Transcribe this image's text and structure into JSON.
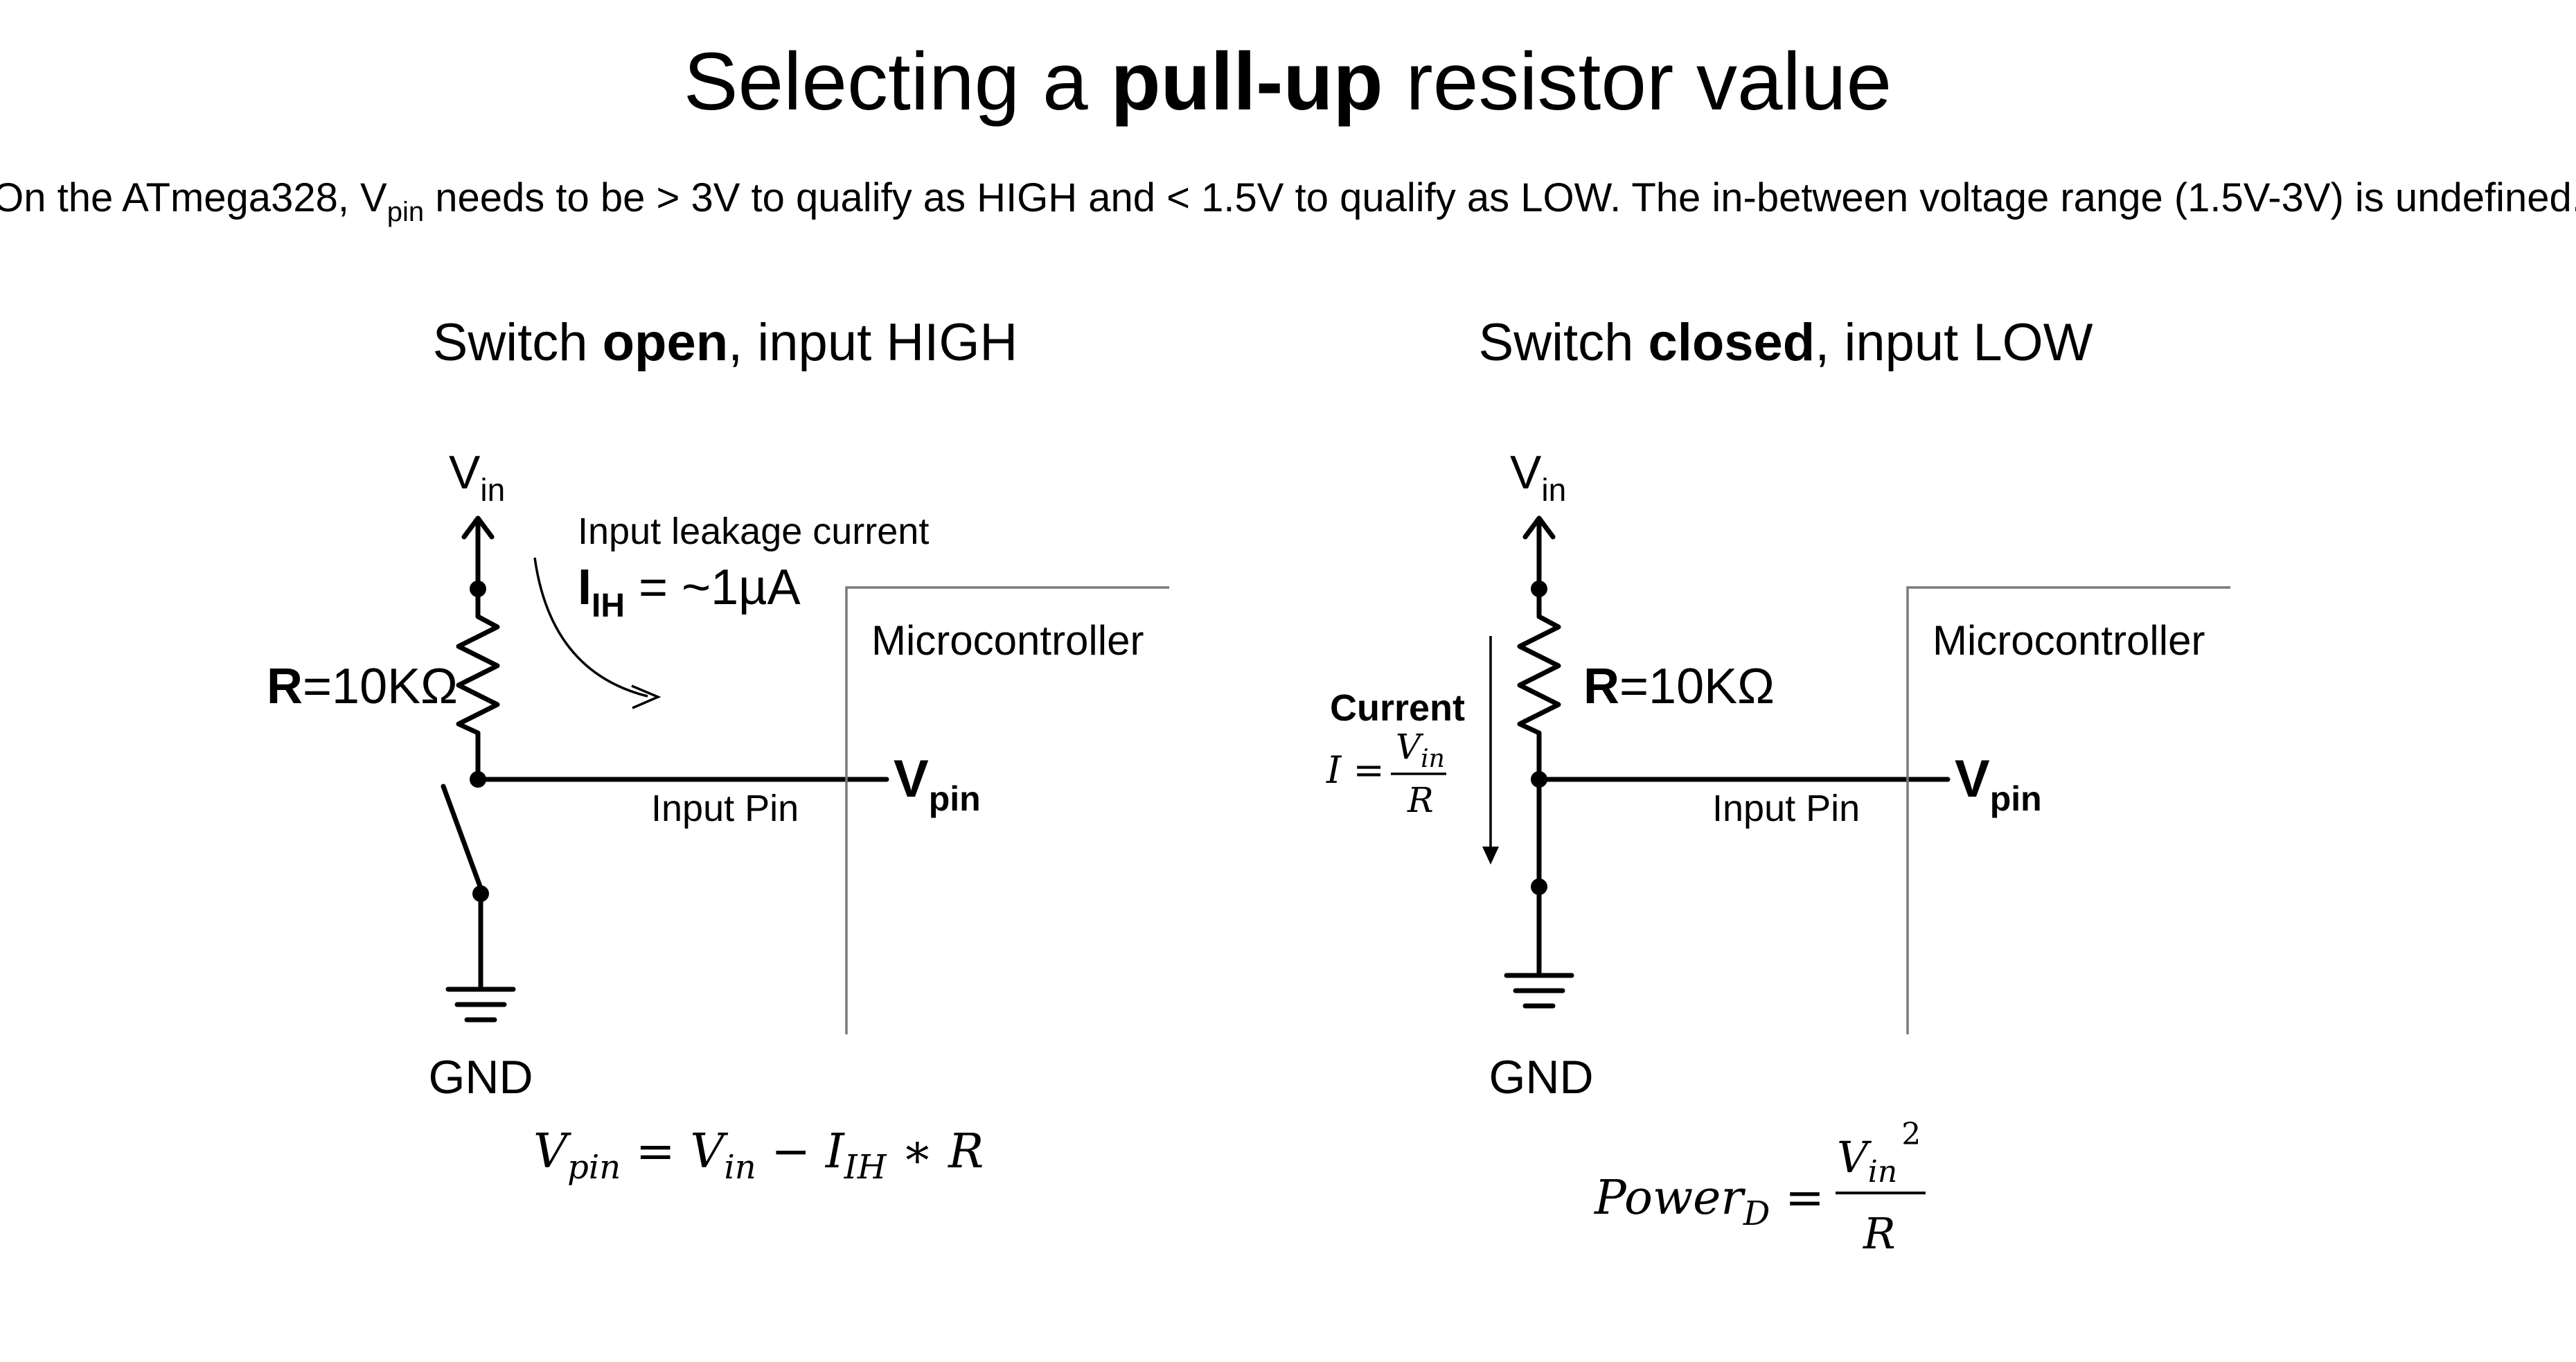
{
  "title": {
    "prefix": "Selecting a ",
    "bold": "pull-up",
    "suffix": " resistor value"
  },
  "subtitle": {
    "part1": "On the ATmega328, V",
    "sub": "pin",
    "part2": " needs to be > 3V to qualify as HIGH and < 1.5V to qualify as LOW. The in-between voltage range (1.5V-3V) is undefined."
  },
  "left": {
    "heading_prefix": "Switch ",
    "heading_bold": "open",
    "heading_suffix": ", input HIGH",
    "vin": "V",
    "vin_sub": "in",
    "resistor_bold": "R",
    "resistor_value": "=10KΩ",
    "leakage_label": "Input leakage current",
    "leakage_I": "I",
    "leakage_sub": "IH",
    "leakage_value": " = ~1µA",
    "mcu_label": "Microcontroller",
    "input_pin": "Input Pin",
    "vpin": "V",
    "vpin_sub": "pin",
    "gnd": "GND",
    "eq_vpin": "V",
    "eq_vpin_sub": "pin",
    "eq_eq": " = ",
    "eq_vin": "V",
    "eq_vin_sub": "in",
    "eq_minus": " −  ",
    "eq_i": "I",
    "eq_i_sub": "IH",
    "eq_rest": " ∗ R"
  },
  "right": {
    "heading_prefix": "Switch ",
    "heading_bold": "closed",
    "heading_suffix": ", input LOW",
    "vin": "V",
    "vin_sub": "in",
    "resistor_bold": "R",
    "resistor_value": "=10KΩ",
    "current_label": "Current",
    "current_i": "I = ",
    "current_num": "V",
    "current_num_sub": "in",
    "current_den": "R",
    "mcu_label": "Microcontroller",
    "input_pin": "Input Pin",
    "vpin": "V",
    "vpin_sub": "pin",
    "gnd": "GND",
    "power_label": "Power",
    "power_sub": "D",
    "power_eq": " = ",
    "power_num": "V",
    "power_num_sub": "in",
    "power_exp": "2",
    "power_den": "R"
  }
}
